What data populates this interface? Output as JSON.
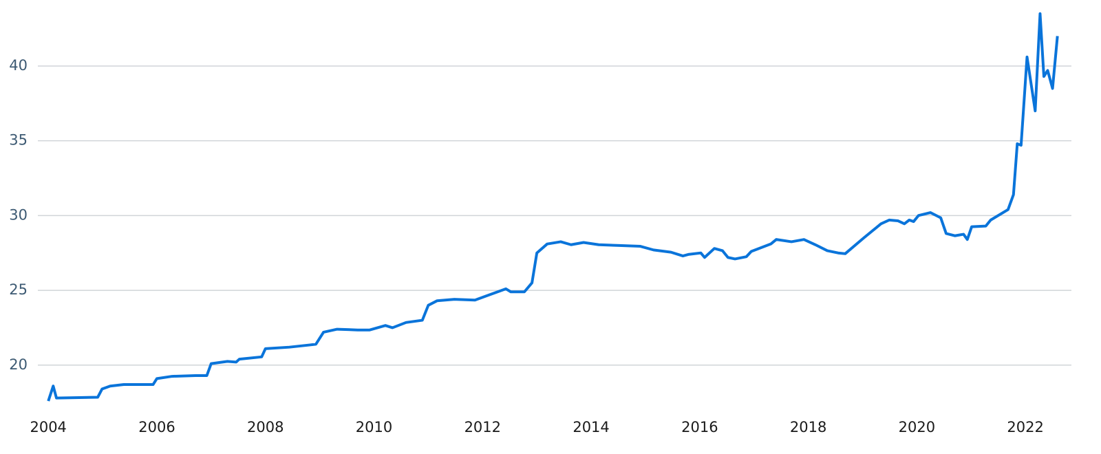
{
  "chart_data": {
    "type": "line",
    "color": "#0a74da",
    "grid": true,
    "x": [
      2004.0,
      2004.09,
      2004.15,
      2004.91,
      2004.99,
      2005.14,
      2005.39,
      2005.93,
      2006.0,
      2006.28,
      2006.71,
      2006.92,
      2007.0,
      2007.3,
      2007.46,
      2007.52,
      2007.93,
      2008.0,
      2008.44,
      2008.82,
      2008.93,
      2009.07,
      2009.32,
      2009.7,
      2009.92,
      2010.21,
      2010.34,
      2010.59,
      2010.89,
      2011.0,
      2011.16,
      2011.48,
      2011.86,
      2012.05,
      2012.43,
      2012.52,
      2012.77,
      2012.91,
      2013.0,
      2013.19,
      2013.44,
      2013.63,
      2013.86,
      2014.14,
      2014.52,
      2014.9,
      2015.15,
      2015.47,
      2015.69,
      2015.79,
      2016.02,
      2016.09,
      2016.27,
      2016.42,
      2016.52,
      2016.65,
      2016.86,
      2016.95,
      2017.31,
      2017.41,
      2017.69,
      2017.92,
      2018.13,
      2018.35,
      2018.55,
      2018.68,
      2019.02,
      2019.34,
      2019.49,
      2019.65,
      2019.77,
      2019.86,
      2019.94,
      2020.03,
      2020.25,
      2020.44,
      2020.54,
      2020.7,
      2020.86,
      2020.93,
      2021.01,
      2021.27,
      2021.36,
      2021.68,
      2021.78,
      2021.85,
      2021.92,
      2022.03,
      2022.18,
      2022.27,
      2022.34,
      2022.41,
      2022.5,
      2022.59
    ],
    "values": [
      17.6,
      18.6,
      17.8,
      17.85,
      18.4,
      18.6,
      18.7,
      18.7,
      19.1,
      19.25,
      19.3,
      19.3,
      20.1,
      20.25,
      20.2,
      20.4,
      20.55,
      21.1,
      21.2,
      21.35,
      21.4,
      22.2,
      22.4,
      22.35,
      22.35,
      22.65,
      22.5,
      22.85,
      23.0,
      24.0,
      24.3,
      24.4,
      24.35,
      24.6,
      25.1,
      24.9,
      24.9,
      25.5,
      27.5,
      28.1,
      28.25,
      28.05,
      28.2,
      28.05,
      28.0,
      27.95,
      27.7,
      27.55,
      27.3,
      27.4,
      27.5,
      27.2,
      27.8,
      27.65,
      27.2,
      27.1,
      27.25,
      27.6,
      28.1,
      28.4,
      28.25,
      28.4,
      28.05,
      27.65,
      27.5,
      27.45,
      28.5,
      29.45,
      29.7,
      29.65,
      29.45,
      29.7,
      29.6,
      30.0,
      30.2,
      29.85,
      28.8,
      28.65,
      28.75,
      28.4,
      29.25,
      29.3,
      29.7,
      30.4,
      31.4,
      34.8,
      34.7,
      40.6,
      37.0,
      43.5,
      39.3,
      39.7,
      38.5,
      42.0
    ],
    "xlim": [
      2003.11,
      2022.86
    ],
    "ylim": [
      17,
      44
    ],
    "xticks": [
      2004,
      2006,
      2008,
      2010,
      2012,
      2014,
      2016,
      2018,
      2020,
      2022
    ],
    "yticks": [
      20,
      25,
      30,
      35,
      40
    ]
  }
}
